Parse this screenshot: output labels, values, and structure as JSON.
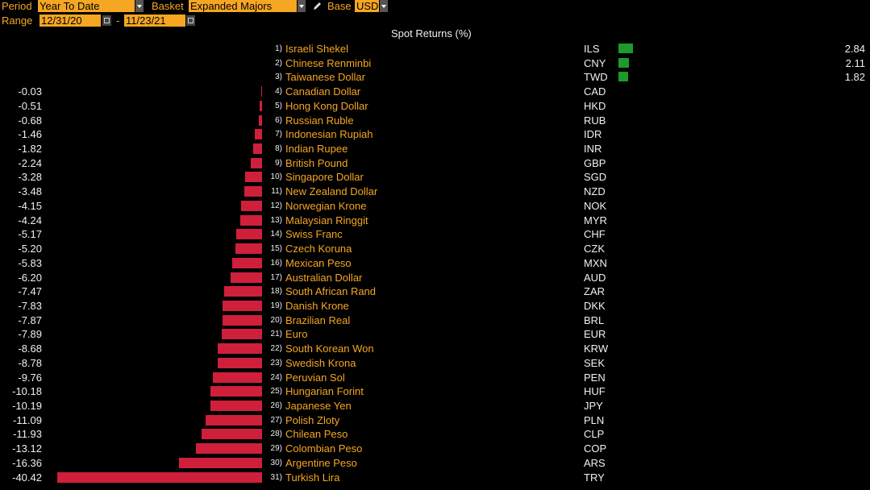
{
  "header": {
    "period_label": "Period",
    "period_value": "Year To Date",
    "basket_label": "Basket",
    "basket_value": "Expanded Majors",
    "base_label": "Base",
    "base_value": "USD",
    "range_label": "Range",
    "range_start": "12/31/20",
    "range_sep": "-",
    "range_end": "11/23/21"
  },
  "chart_title": "Spot Returns (%)",
  "colors": {
    "negative": "#d01f3b",
    "positive": "#1c9a2b",
    "accent": "#f5a623"
  },
  "chart_data": {
    "type": "bar",
    "title": "Spot Returns (%)",
    "rows": [
      {
        "rank": "1)",
        "name": "Israeli Shekel",
        "code": "ILS",
        "value": 2.84,
        "label": "2.84"
      },
      {
        "rank": "2)",
        "name": "Chinese Renminbi",
        "code": "CNY",
        "value": 2.11,
        "label": "2.11"
      },
      {
        "rank": "3)",
        "name": "Taiwanese Dollar",
        "code": "TWD",
        "value": 1.82,
        "label": "1.82"
      },
      {
        "rank": "4)",
        "name": "Canadian Dollar",
        "code": "CAD",
        "value": -0.03,
        "label": "-0.03"
      },
      {
        "rank": "5)",
        "name": "Hong Kong Dollar",
        "code": "HKD",
        "value": -0.51,
        "label": "-0.51"
      },
      {
        "rank": "6)",
        "name": "Russian Ruble",
        "code": "RUB",
        "value": -0.68,
        "label": "-0.68"
      },
      {
        "rank": "7)",
        "name": "Indonesian Rupiah",
        "code": "IDR",
        "value": -1.46,
        "label": "-1.46"
      },
      {
        "rank": "8)",
        "name": "Indian Rupee",
        "code": "INR",
        "value": -1.82,
        "label": "-1.82"
      },
      {
        "rank": "9)",
        "name": "British Pound",
        "code": "GBP",
        "value": -2.24,
        "label": "-2.24"
      },
      {
        "rank": "10)",
        "name": "Singapore Dollar",
        "code": "SGD",
        "value": -3.28,
        "label": "-3.28"
      },
      {
        "rank": "11)",
        "name": "New Zealand Dollar",
        "code": "NZD",
        "value": -3.48,
        "label": "-3.48"
      },
      {
        "rank": "12)",
        "name": "Norwegian Krone",
        "code": "NOK",
        "value": -4.15,
        "label": "-4.15"
      },
      {
        "rank": "13)",
        "name": "Malaysian Ringgit",
        "code": "MYR",
        "value": -4.24,
        "label": "-4.24"
      },
      {
        "rank": "14)",
        "name": "Swiss Franc",
        "code": "CHF",
        "value": -5.17,
        "label": "-5.17"
      },
      {
        "rank": "15)",
        "name": "Czech Koruna",
        "code": "CZK",
        "value": -5.2,
        "label": "-5.20"
      },
      {
        "rank": "16)",
        "name": "Mexican Peso",
        "code": "MXN",
        "value": -5.83,
        "label": "-5.83"
      },
      {
        "rank": "17)",
        "name": "Australian Dollar",
        "code": "AUD",
        "value": -6.2,
        "label": "-6.20"
      },
      {
        "rank": "18)",
        "name": "South African Rand",
        "code": "ZAR",
        "value": -7.47,
        "label": "-7.47"
      },
      {
        "rank": "19)",
        "name": "Danish Krone",
        "code": "DKK",
        "value": -7.83,
        "label": "-7.83"
      },
      {
        "rank": "20)",
        "name": "Brazilian Real",
        "code": "BRL",
        "value": -7.87,
        "label": "-7.87"
      },
      {
        "rank": "21)",
        "name": "Euro",
        "code": "EUR",
        "value": -7.89,
        "label": "-7.89"
      },
      {
        "rank": "22)",
        "name": "South Korean Won",
        "code": "KRW",
        "value": -8.68,
        "label": "-8.68"
      },
      {
        "rank": "23)",
        "name": "Swedish Krona",
        "code": "SEK",
        "value": -8.78,
        "label": "-8.78"
      },
      {
        "rank": "24)",
        "name": "Peruvian Sol",
        "code": "PEN",
        "value": -9.76,
        "label": "-9.76"
      },
      {
        "rank": "25)",
        "name": "Hungarian Forint",
        "code": "HUF",
        "value": -10.18,
        "label": "-10.18"
      },
      {
        "rank": "26)",
        "name": "Japanese Yen",
        "code": "JPY",
        "value": -10.19,
        "label": "-10.19"
      },
      {
        "rank": "27)",
        "name": "Polish Zloty",
        "code": "PLN",
        "value": -11.09,
        "label": "-11.09"
      },
      {
        "rank": "28)",
        "name": "Chilean Peso",
        "code": "CLP",
        "value": -11.93,
        "label": "-11.93"
      },
      {
        "rank": "29)",
        "name": "Colombian Peso",
        "code": "COP",
        "value": -13.12,
        "label": "-13.12"
      },
      {
        "rank": "30)",
        "name": "Argentine Peso",
        "code": "ARS",
        "value": -16.36,
        "label": "-16.36"
      },
      {
        "rank": "31)",
        "name": "Turkish Lira",
        "code": "TRY",
        "value": -40.42,
        "label": "-40.42"
      }
    ]
  }
}
